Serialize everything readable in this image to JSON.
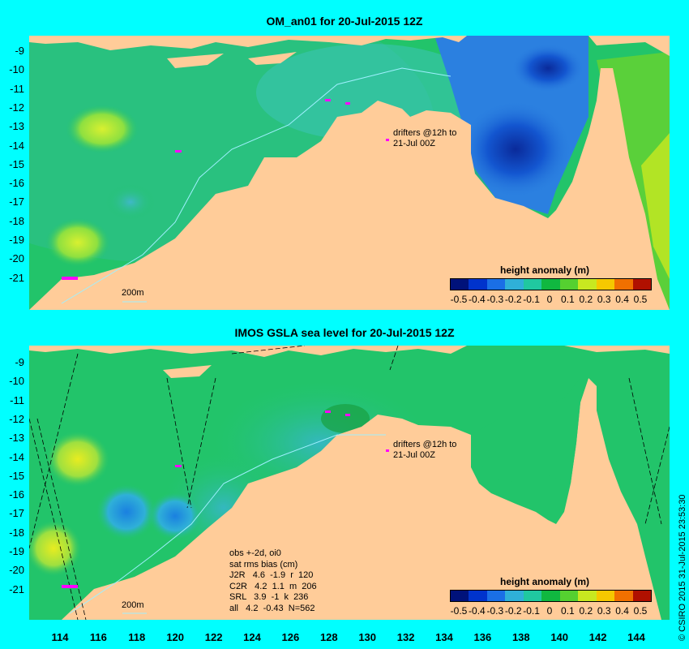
{
  "top_panel": {
    "title": "OM_an01 for 20-Jul-2015 12Z",
    "drifters_label_line1": "drifters @12h to",
    "drifters_label_line2": "21-Jul 00Z",
    "isobath_label": "200m",
    "colorbar_title": "height anomaly (m)"
  },
  "bottom_panel": {
    "title": "IMOS GSLA sea level  for 20-Jul-2015 12Z",
    "drifters_label_line1": "drifters @12h to",
    "drifters_label_line2": "21-Jul 00Z",
    "isobath_label": "200m",
    "colorbar_title": "height anomaly (m)",
    "stats": {
      "line1": "obs +-2d, oi0",
      "line2": "sat rms bias (cm)",
      "rows": [
        "J2R   4.6  -1.9  r  120",
        "C2R   4.2  1.1  m  206",
        "SRL   3.9  -1  k  236",
        "all   4.2  -0.43  N=562"
      ]
    }
  },
  "colorbar_ticks": [
    "-0.5",
    "-0.4",
    "-0.3",
    "-0.2",
    "-0.1",
    "0",
    "0.1",
    "0.2",
    "0.3",
    "0.4",
    "0.5"
  ],
  "colorbar_colors": [
    "#00127a",
    "#0033cc",
    "#1a6fe6",
    "#2fb0d8",
    "#20c8a0",
    "#10b840",
    "#55d030",
    "#c8e820",
    "#f5c800",
    "#f07000",
    "#b01000"
  ],
  "y_axis_ticks": [
    "-9",
    "-10",
    "-11",
    "-12",
    "-13",
    "-14",
    "-15",
    "-16",
    "-17",
    "-18",
    "-19",
    "-20",
    "-21"
  ],
  "x_axis_ticks": [
    "114",
    "116",
    "118",
    "120",
    "122",
    "124",
    "126",
    "128",
    "130",
    "132",
    "134",
    "136",
    "138",
    "140",
    "142",
    "144"
  ],
  "copyright": "© CSIRO 2015  31-Jul-2015 23:53:30",
  "colors": {
    "background": "#00ffff",
    "land": "#ffcc99",
    "ocean_base": "#22c46a",
    "drifter": "#ff00ff"
  }
}
